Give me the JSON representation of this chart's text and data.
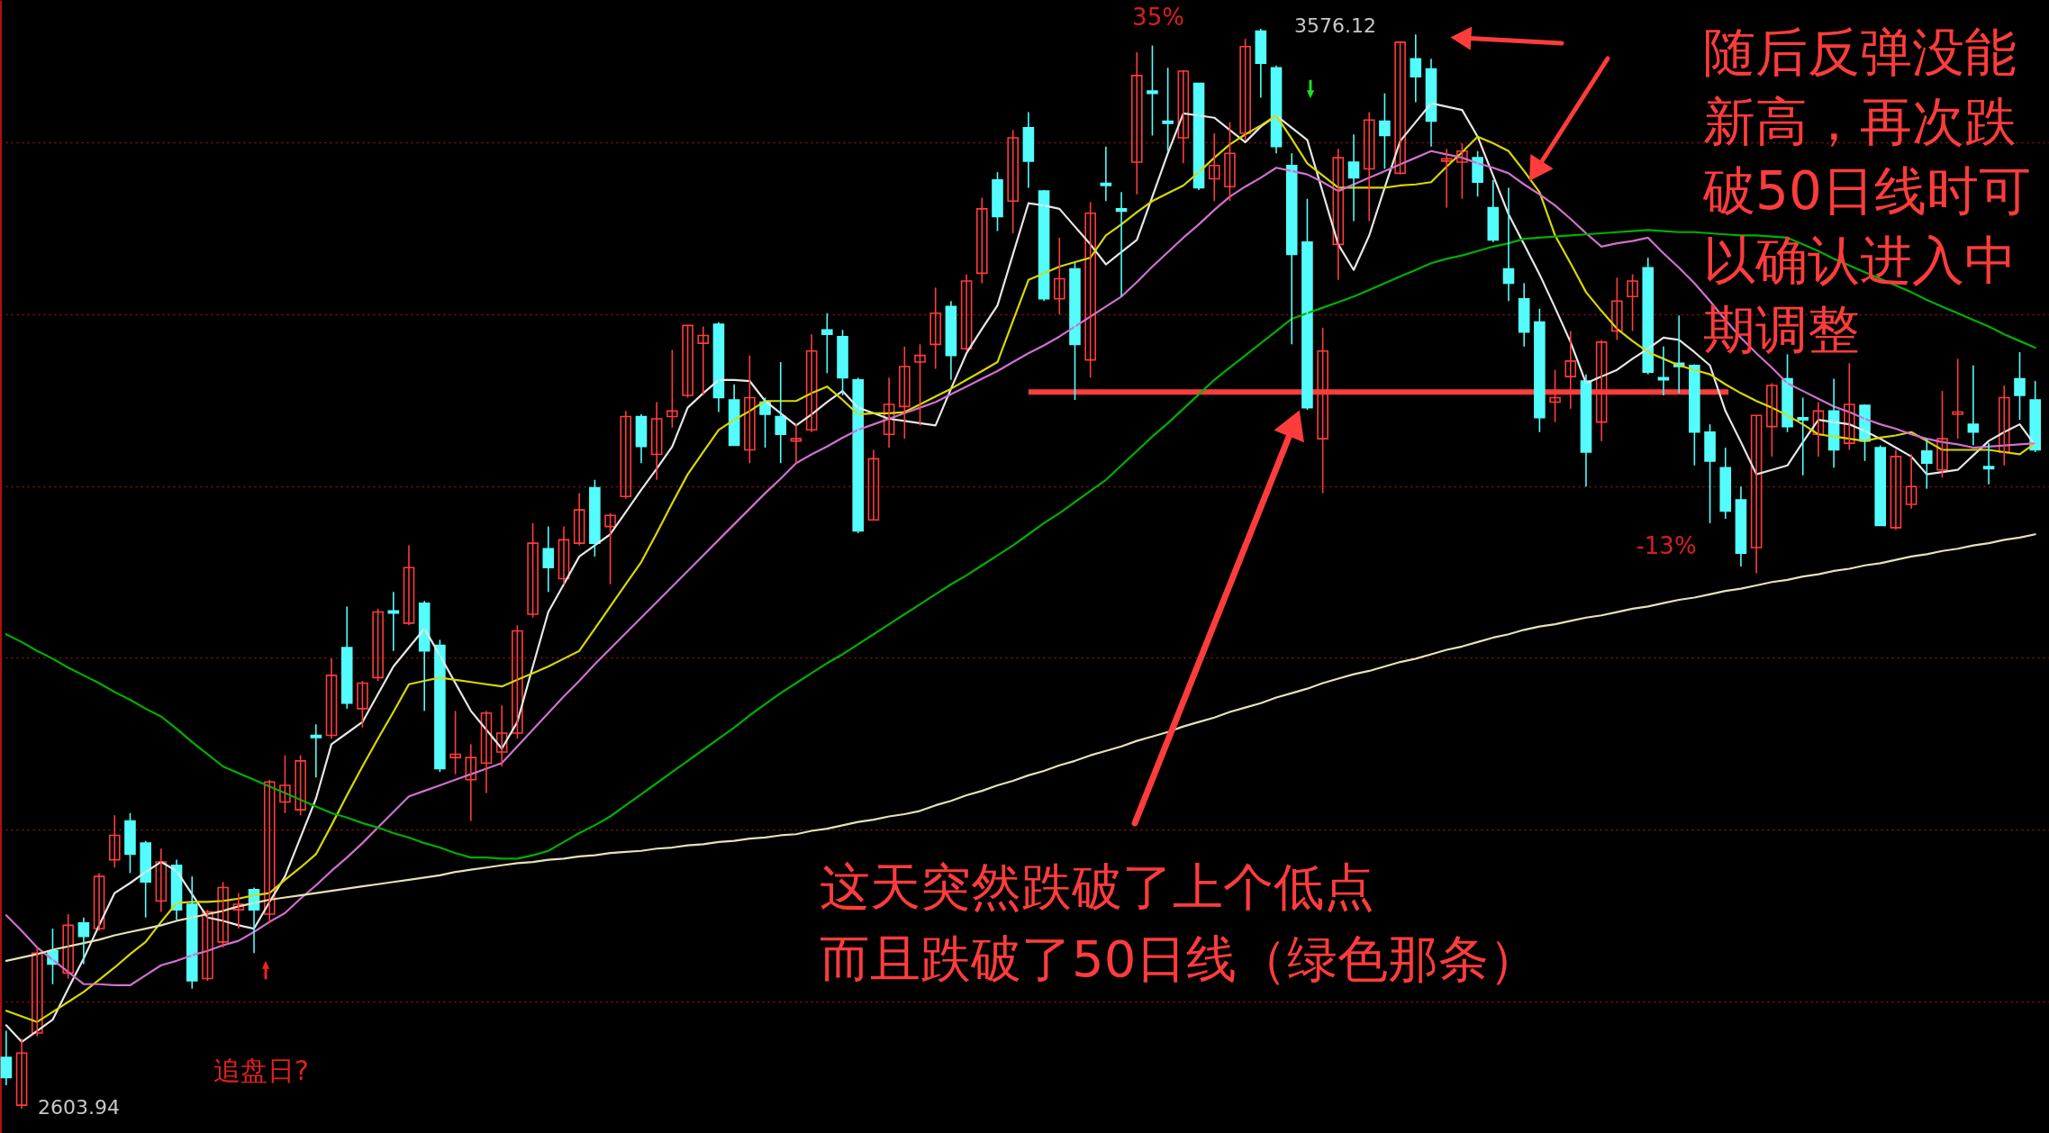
{
  "chart_data": {
    "type": "candlestick",
    "categories": [
      null,
      null,
      null,
      null,
      null,
      null,
      null,
      null,
      null,
      null,
      null,
      null,
      null,
      null,
      null,
      null,
      null,
      null,
      null,
      null,
      null,
      null,
      null,
      null,
      null,
      null,
      null,
      null,
      null,
      null,
      null,
      null,
      null,
      null,
      null,
      null,
      null,
      null,
      null,
      null,
      null,
      null,
      null,
      null,
      null,
      null,
      null,
      null,
      null,
      null,
      null,
      null,
      null,
      null,
      null,
      null,
      null,
      null,
      null,
      null,
      null,
      null,
      null,
      null,
      null,
      null,
      null,
      null,
      null,
      null,
      null,
      null,
      null,
      null,
      null,
      null,
      null,
      null,
      null,
      null,
      null,
      null,
      null,
      null,
      null,
      null,
      null,
      null,
      null,
      null,
      null,
      null,
      null,
      null,
      null,
      null,
      null,
      null,
      null,
      null,
      null,
      null,
      null,
      null,
      null,
      null,
      null,
      null,
      null,
      null,
      null,
      null,
      null,
      null,
      null,
      null,
      null,
      null,
      null,
      null,
      null,
      null,
      null,
      null,
      null,
      null,
      null,
      null,
      null,
      null,
      null,
      null
    ],
    "ohlc": [
      [
        2650,
        2674,
        2625,
        2632
      ],
      [
        2607,
        2667,
        2603.94,
        2654
      ],
      [
        2672,
        2749,
        2669,
        2744
      ],
      [
        2746,
        2766,
        2716,
        2734
      ],
      [
        2726,
        2779,
        2721,
        2769
      ],
      [
        2771,
        2776,
        2734,
        2759
      ],
      [
        2766,
        2816,
        2764,
        2813
      ],
      [
        2828,
        2868,
        2821,
        2850
      ],
      [
        2863,
        2870,
        2816,
        2833
      ],
      [
        2843,
        2845,
        2776,
        2808
      ],
      [
        2791,
        2838,
        2781,
        2826
      ],
      [
        2823,
        2828,
        2774,
        2783
      ],
      [
        2788,
        2813,
        2712,
        2719
      ],
      [
        2721,
        2783,
        2719,
        2781
      ],
      [
        2754,
        2808,
        2749,
        2803
      ],
      [
        2783,
        2798,
        2766,
        2788
      ],
      [
        2801,
        2803,
        2744,
        2783
      ],
      [
        2779,
        2900,
        2771,
        2898
      ],
      [
        2880,
        2922,
        2870,
        2895
      ],
      [
        2873,
        2922,
        2868,
        2917
      ],
      [
        2940,
        2950,
        2902,
        2938
      ],
      [
        2940,
        3009,
        2937,
        2994
      ],
      [
        3019,
        3056,
        2964,
        2969
      ],
      [
        2964,
        2989,
        2947,
        2987
      ],
      [
        2992,
        3054,
        2989,
        3051
      ],
      [
        3052,
        3069,
        3016,
        3050
      ],
      [
        3041,
        3111,
        3039,
        3091
      ],
      [
        3059,
        3061,
        2962,
        3016
      ],
      [
        3021,
        3026,
        2907,
        2910
      ],
      [
        2920,
        2962,
        2905,
        2923
      ],
      [
        2900,
        2932,
        2863,
        2920
      ],
      [
        2915,
        2962,
        2888,
        2960
      ],
      [
        2925,
        2967,
        2912,
        2942
      ],
      [
        2942,
        3039,
        2937,
        3034
      ],
      [
        3049,
        3131,
        3046,
        3113
      ],
      [
        3108,
        3128,
        3069,
        3091
      ],
      [
        3081,
        3128,
        3076,
        3116
      ],
      [
        3113,
        3158,
        3111,
        3143
      ],
      [
        3163,
        3170,
        3101,
        3113
      ],
      [
        3128,
        3140,
        3076,
        3138
      ],
      [
        3155,
        3232,
        3153,
        3227
      ],
      [
        3227,
        3229,
        3185,
        3200
      ],
      [
        3193,
        3240,
        3170,
        3225
      ],
      [
        3227,
        3287,
        3217,
        3232
      ],
      [
        3246,
        3309,
        3244,
        3309
      ],
      [
        3293,
        3308,
        3246,
        3300
      ],
      [
        3310,
        3312,
        3231,
        3244
      ],
      [
        3242,
        3256,
        3201,
        3201
      ],
      [
        3197,
        3282,
        3185,
        3244
      ],
      [
        3240,
        3244,
        3199,
        3229
      ],
      [
        3227,
        3276,
        3185,
        3211
      ],
      [
        3205,
        3221,
        3185,
        3207
      ],
      [
        3215,
        3301,
        3213,
        3286
      ],
      [
        3305,
        3320,
        3266,
        3301
      ],
      [
        3299,
        3305,
        3246,
        3262
      ],
      [
        3260,
        3262,
        3122,
        3124
      ],
      [
        3134,
        3197,
        3134,
        3189
      ],
      [
        3211,
        3262,
        3199,
        3238
      ],
      [
        3236,
        3290,
        3207,
        3272
      ],
      [
        3276,
        3292,
        3219,
        3282
      ],
      [
        3292,
        3343,
        3270,
        3320
      ],
      [
        3326,
        3331,
        3260,
        3282
      ],
      [
        3288,
        3355,
        3286,
        3349
      ],
      [
        3356,
        3424,
        3347,
        3414
      ],
      [
        3440,
        3447,
        3394,
        3407
      ],
      [
        3421,
        3485,
        3392,
        3478
      ],
      [
        3487,
        3501,
        3433,
        3457
      ],
      [
        3430,
        3431,
        3331,
        3333
      ],
      [
        3333,
        3388,
        3319,
        3351
      ],
      [
        3360,
        3366,
        3242,
        3292
      ],
      [
        3278,
        3420,
        3262,
        3410
      ],
      [
        3437,
        3470,
        3421,
        3435
      ],
      [
        3414,
        3429,
        3335,
        3412
      ],
      [
        3456,
        3555,
        3427,
        3534
      ],
      [
        3520,
        3561,
        3480,
        3518
      ],
      [
        3493,
        3541,
        3466,
        3491
      ],
      [
        3478,
        3539,
        3455,
        3538
      ],
      [
        3527,
        3527,
        3431,
        3433
      ],
      [
        3441,
        3482,
        3421,
        3453
      ],
      [
        3434,
        3492,
        3421,
        3464
      ],
      [
        3482,
        3567,
        3476,
        3560
      ],
      [
        3574,
        3576.12,
        3514,
        3545
      ],
      [
        3541,
        3543,
        3464,
        3470
      ],
      [
        3453,
        3464,
        3292,
        3373
      ],
      [
        3384,
        3423,
        3233,
        3235
      ],
      [
        3207,
        3307,
        3158,
        3286
      ],
      [
        3382,
        3468,
        3350,
        3460
      ],
      [
        3456,
        3481,
        3403,
        3442
      ],
      [
        3450,
        3501,
        3403,
        3494
      ],
      [
        3493,
        3518,
        3450,
        3480
      ],
      [
        3446,
        3565,
        3445,
        3564
      ],
      [
        3549,
        3571,
        3510,
        3533
      ],
      [
        3540,
        3549,
        3470,
        3493
      ],
      [
        3457,
        3468,
        3415,
        3459
      ],
      [
        3456,
        3473,
        3423,
        3466
      ],
      [
        3460,
        3466,
        3425,
        3438
      ],
      [
        3415,
        3440,
        3384,
        3386
      ],
      [
        3360,
        3433,
        3331,
        3347
      ],
      [
        3333,
        3347,
        3290,
        3303
      ],
      [
        3312,
        3324,
        3213,
        3226
      ],
      [
        3240,
        3269,
        3222,
        3244
      ],
      [
        3263,
        3304,
        3234,
        3277
      ],
      [
        3259,
        3265,
        3164,
        3195
      ],
      [
        3222,
        3296,
        3205,
        3294
      ],
      [
        3304,
        3352,
        3296,
        3331
      ],
      [
        3335,
        3355,
        3304,
        3349
      ],
      [
        3361,
        3370,
        3265,
        3267
      ],
      [
        3262,
        3290,
        3246,
        3260
      ],
      [
        3275,
        3318,
        3248,
        3272
      ],
      [
        3273,
        3274,
        3183,
        3213
      ],
      [
        3213,
        3220,
        3131,
        3187
      ],
      [
        3181,
        3199,
        3135,
        3142
      ],
      [
        3152,
        3164,
        3092,
        3104
      ],
      [
        3109,
        3228,
        3086,
        3228
      ],
      [
        3218,
        3257,
        3191,
        3255
      ],
      [
        3261,
        3283,
        3213,
        3218
      ],
      [
        3226,
        3244,
        3174,
        3224
      ],
      [
        3211,
        3240,
        3191,
        3232
      ],
      [
        3232,
        3261,
        3181,
        3197
      ],
      [
        3203,
        3275,
        3197,
        3238
      ],
      [
        3237,
        3238,
        3187,
        3205
      ],
      [
        3199,
        3201,
        3129,
        3129
      ],
      [
        3127,
        3197,
        3125,
        3191
      ],
      [
        3148,
        3193,
        3144,
        3164
      ],
      [
        3196,
        3207,
        3162,
        3185
      ],
      [
        3179,
        3250,
        3172,
        3207
      ],
      [
        3229,
        3279,
        3207,
        3231
      ],
      [
        3220,
        3273,
        3201,
        3213
      ],
      [
        3182,
        3203,
        3166,
        3180
      ],
      [
        3195,
        3255,
        3183,
        3244
      ],
      [
        3261,
        3285,
        3224,
        3246
      ],
      [
        3242,
        3259,
        3195,
        3197
      ]
    ],
    "series": [
      {
        "type": "line",
        "color": "#e6e6e6",
        "values": [
          2679,
          2664,
          2674,
          2684,
          2712,
          2739,
          2769,
          2798,
          2807,
          2817,
          2826,
          2818,
          2797,
          2776,
          2773,
          2769,
          2766,
          2790,
          2813,
          2848,
          2883,
          2932,
          2942,
          2952,
          2977,
          3002,
          3019,
          3036,
          3012,
          2987,
          2962,
          2945,
          2928,
          2952,
          3002,
          3051,
          3076,
          3101,
          3111,
          3121,
          3141,
          3161,
          3180,
          3200,
          3235,
          3248,
          3260,
          3260,
          3259,
          3241,
          3230,
          3219,
          3229,
          3240,
          3250,
          3235,
          3230,
          3225,
          3223,
          3221,
          3219,
          3252,
          3284,
          3306,
          3327,
          3373,
          3419,
          3417,
          3414,
          3398,
          3382,
          3364,
          3375,
          3386,
          3425,
          3464,
          3500,
          3498,
          3496,
          3485,
          3474,
          3488,
          3498,
          3487,
          3476,
          3429,
          3382,
          3359,
          3390,
          3433,
          3475,
          3492,
          3509,
          3506,
          3503,
          3479,
          3444,
          3409,
          3382,
          3355,
          3325,
          3294,
          3257,
          3263,
          3269,
          3279,
          3288,
          3298,
          3296,
          3285,
          3273,
          3232,
          3204,
          3175,
          3179,
          3183,
          3204,
          3224,
          3222,
          3220,
          3214,
          3207,
          3199,
          3191,
          3175,
          3177,
          3179,
          3192,
          3205,
          3213,
          3220,
          3201
        ]
      },
      {
        "type": "line",
        "color": "#d8d800",
        "values": [
          2692,
          2687,
          2682,
          2691,
          2700,
          2709,
          2720,
          2731,
          2743,
          2754,
          2772,
          2789,
          2790,
          2790,
          2791,
          2793,
          2796,
          2798,
          2810,
          2821,
          2833,
          2859,
          2886,
          2912,
          2937,
          2961,
          2986,
          2989,
          2992,
          2990,
          2988,
          2986,
          2984,
          2990,
          2996,
          3002,
          3009,
          3016,
          3036,
          3056,
          3076,
          3096,
          3122,
          3149,
          3175,
          3195,
          3215,
          3224,
          3232,
          3241,
          3241,
          3241,
          3248,
          3254,
          3242,
          3229,
          3230,
          3230,
          3231,
          3238,
          3245,
          3252,
          3260,
          3268,
          3276,
          3313,
          3350,
          3356,
          3362,
          3366,
          3370,
          3390,
          3400,
          3411,
          3421,
          3428,
          3435,
          3447,
          3460,
          3472,
          3481,
          3489,
          3498,
          3477,
          3455,
          3444,
          3433,
          3433,
          3433,
          3433,
          3435,
          3436,
          3438,
          3452,
          3465,
          3479,
          3473,
          3466,
          3448,
          3429,
          3390,
          3365,
          3339,
          3322,
          3306,
          3295,
          3285,
          3279,
          3273,
          3269,
          3265,
          3256,
          3248,
          3241,
          3235,
          3228,
          3220,
          3211,
          3209,
          3207,
          3205,
          3208,
          3210,
          3213,
          3205,
          3197,
          3197,
          3197,
          3197,
          3195,
          3193,
          3203
        ]
      },
      {
        "type": "line",
        "color": "#d070d0",
        "values": [
          2778,
          2764,
          2749,
          2738,
          2727,
          2716,
          2716,
          2715,
          2715,
          2724,
          2733,
          2737,
          2742,
          2746,
          2751,
          2755,
          2763,
          2772,
          2780,
          2793,
          2805,
          2818,
          2830,
          2843,
          2857,
          2871,
          2885,
          2890,
          2895,
          2900,
          2905,
          2910,
          2915,
          2930,
          2945,
          2960,
          2975,
          2989,
          3004,
          3018,
          3032,
          3046,
          3060,
          3074,
          3088,
          3102,
          3116,
          3130,
          3144,
          3158,
          3171,
          3185,
          3193,
          3200,
          3208,
          3215,
          3220,
          3225,
          3230,
          3235,
          3240,
          3247,
          3254,
          3261,
          3268,
          3276,
          3284,
          3291,
          3299,
          3308,
          3317,
          3326,
          3335,
          3348,
          3362,
          3375,
          3388,
          3400,
          3413,
          3425,
          3434,
          3442,
          3451,
          3448,
          3445,
          3438,
          3430,
          3436,
          3442,
          3448,
          3454,
          3460,
          3466,
          3463,
          3460,
          3455,
          3451,
          3446,
          3436,
          3427,
          3417,
          3405,
          3392,
          3380,
          3383,
          3385,
          3388,
          3374,
          3361,
          3347,
          3331,
          3314,
          3298,
          3284,
          3271,
          3257,
          3250,
          3243,
          3236,
          3231,
          3225,
          3220,
          3216,
          3211,
          3207,
          3204,
          3202,
          3199,
          3200,
          3201,
          3202,
          3203
        ]
      },
      {
        "type": "line",
        "color": "#00b000",
        "values": [
          3031,
          3024,
          3016,
          3009,
          3001,
          2994,
          2987,
          2979,
          2972,
          2964,
          2957,
          2946,
          2934,
          2923,
          2912,
          2906,
          2900,
          2894,
          2888,
          2882,
          2876,
          2870,
          2866,
          2861,
          2857,
          2852,
          2848,
          2843,
          2839,
          2834,
          2830,
          2830,
          2829,
          2829,
          2832,
          2836,
          2844,
          2852,
          2859,
          2867,
          2877,
          2887,
          2897,
          2907,
          2917,
          2927,
          2937,
          2947,
          2958,
          2968,
          2978,
          2987,
          2996,
          3005,
          3013,
          3022,
          3031,
          3040,
          3049,
          3058,
          3067,
          3076,
          3084,
          3093,
          3102,
          3111,
          3121,
          3131,
          3140,
          3150,
          3160,
          3170,
          3183,
          3196,
          3209,
          3221,
          3234,
          3247,
          3260,
          3271,
          3282,
          3293,
          3304,
          3315,
          3320,
          3325,
          3330,
          3335,
          3341,
          3347,
          3353,
          3359,
          3365,
          3369,
          3372,
          3376,
          3380,
          3383,
          3387,
          3388,
          3389,
          3390,
          3391,
          3392,
          3393,
          3394,
          3395,
          3394,
          3393,
          3393,
          3392,
          3391,
          3390,
          3390,
          3389,
          3388,
          3382,
          3376,
          3369,
          3363,
          3357,
          3351,
          3345,
          3339,
          3332,
          3326,
          3320,
          3314,
          3308,
          3301,
          3295,
          3289
        ]
      },
      {
        "type": "line",
        "color": "#e6e2b4",
        "values": [
          2737,
          2740,
          2743,
          2747,
          2750,
          2753,
          2756,
          2760,
          2763,
          2766,
          2769,
          2773,
          2776,
          2779,
          2782,
          2786,
          2789,
          2792,
          2794,
          2796,
          2798,
          2800,
          2802,
          2804,
          2806,
          2808,
          2810,
          2812,
          2814,
          2817,
          2819,
          2821,
          2823,
          2825,
          2826,
          2828,
          2829,
          2831,
          2832,
          2834,
          2835,
          2836,
          2838,
          2839,
          2841,
          2842,
          2844,
          2845,
          2847,
          2848,
          2850,
          2851,
          2854,
          2856,
          2859,
          2862,
          2864,
          2867,
          2869,
          2872,
          2877,
          2881,
          2886,
          2890,
          2895,
          2899,
          2904,
          2908,
          2913,
          2917,
          2922,
          2926,
          2930,
          2935,
          2939,
          2943,
          2948,
          2952,
          2956,
          2961,
          2965,
          2969,
          2974,
          2978,
          2982,
          2987,
          2991,
          2995,
          2998,
          3002,
          3006,
          3009,
          3013,
          3017,
          3020,
          3024,
          3028,
          3031,
          3035,
          3038,
          3040,
          3043,
          3046,
          3048,
          3051,
          3054,
          3056,
          3059,
          3062,
          3064,
          3067,
          3070,
          3072,
          3075,
          3078,
          3080,
          3083,
          3085,
          3088,
          3090,
          3093,
          3095,
          3098,
          3101,
          3103,
          3106,
          3108,
          3111,
          3113,
          3116,
          3118,
          3121
        ]
      }
    ],
    "ylim": [
      2582,
      3602
    ],
    "yticks": [
      {
        "value": 3474,
        "label": null
      },
      {
        "value": 3319,
        "label": null
      },
      {
        "value": 3164,
        "label": null
      },
      {
        "value": 3010,
        "label": null
      },
      {
        "value": 2855,
        "label": null
      },
      {
        "value": 2700,
        "label": null
      }
    ],
    "grid": "y",
    "ref_lines": [
      {
        "axis": "y",
        "value": 3249,
        "color": "#ff3c3c"
      }
    ],
    "annotations": [
      "35%",
      "3576.12",
      "2603.94",
      "-13%",
      "追盘日?",
      "这天突然跌破了上个低点而且跌破了50日线（绿色那条）",
      "随后反弹没能新高，再次跌破50日线时可以确认进入中期调整"
    ]
  }
}
